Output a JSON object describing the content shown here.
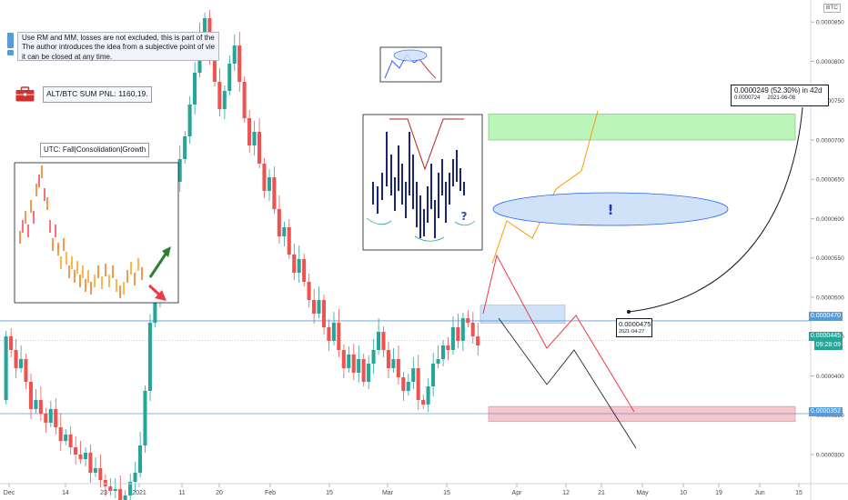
{
  "chart_data": {
    "type": "candlestick",
    "symbol_unit": "BTC",
    "x_ticks": [
      "Dec",
      "14",
      "23",
      "2021",
      "11",
      "20",
      "Feb",
      "15",
      "Mar",
      "15",
      "Apr",
      "12",
      "21",
      "May",
      "10",
      "19",
      "Jun",
      "15"
    ],
    "y_ticks": [
      "0.0000850",
      "0.0000800",
      "0.0000750",
      "0.0000700",
      "0.0000650",
      "0.0000600",
      "0.0000550",
      "0.0000500",
      "0.0000450",
      "0.0000400",
      "0.0000350",
      "0.0000300"
    ],
    "ylim": [
      2.63e-05,
      8.78e-05
    ],
    "price_levels": [
      {
        "value": "0.0000470",
        "role": "resistance"
      },
      {
        "value": "0.0000352",
        "role": "support"
      }
    ],
    "current_price": {
      "value": "0.0000445",
      "countdown": "09:28:09"
    },
    "zones": [
      {
        "name": "target-zone",
        "color": "#b9f5b9",
        "from": 7e-05,
        "to": 7.33e-05
      },
      {
        "name": "entry-zone",
        "color": "#cfe2f7",
        "from": 4.67e-05,
        "to": 4.9e-05
      },
      {
        "name": "stop-zone",
        "color": "#f7c6cc",
        "from": 3.42e-05,
        "to": 3.61e-05
      }
    ],
    "candles_summary": "ALT/BTC daily candles from Dec 2020 to late Mar 2021; peak near 0.0000850 early Feb, consolidating around 0.0000350–0.0000480 in March"
  },
  "annotations": {
    "disclaimer": [
      "Use RM and MM, losses are not excluded, this is part of the system.",
      "The author introduces the idea from a subjective point of view,",
      "it can be closed at any time."
    ],
    "pnl": "ALT/BTC SUM PNL: 1160,19.",
    "utc_label": "UTC: Fall|Consolidation|Growth",
    "target_label": {
      "line1": "0.0000249 (52.30%) in 42d",
      "price": "0.0000724",
      "date": "2021-06-08"
    },
    "entry_label": {
      "price": "0.0000475",
      "date": "2021-04-27"
    },
    "exclamation": "!",
    "question": "?"
  },
  "colors": {
    "bull": "#26a69a",
    "bear": "#ef5350",
    "level_line": "#5b9bd5",
    "path_orange": "#ff9800",
    "path_red": "#f23645",
    "path_black": "#131722",
    "ellipse_fill": "#cfe2f7",
    "ellipse_stroke": "#2962ff"
  }
}
